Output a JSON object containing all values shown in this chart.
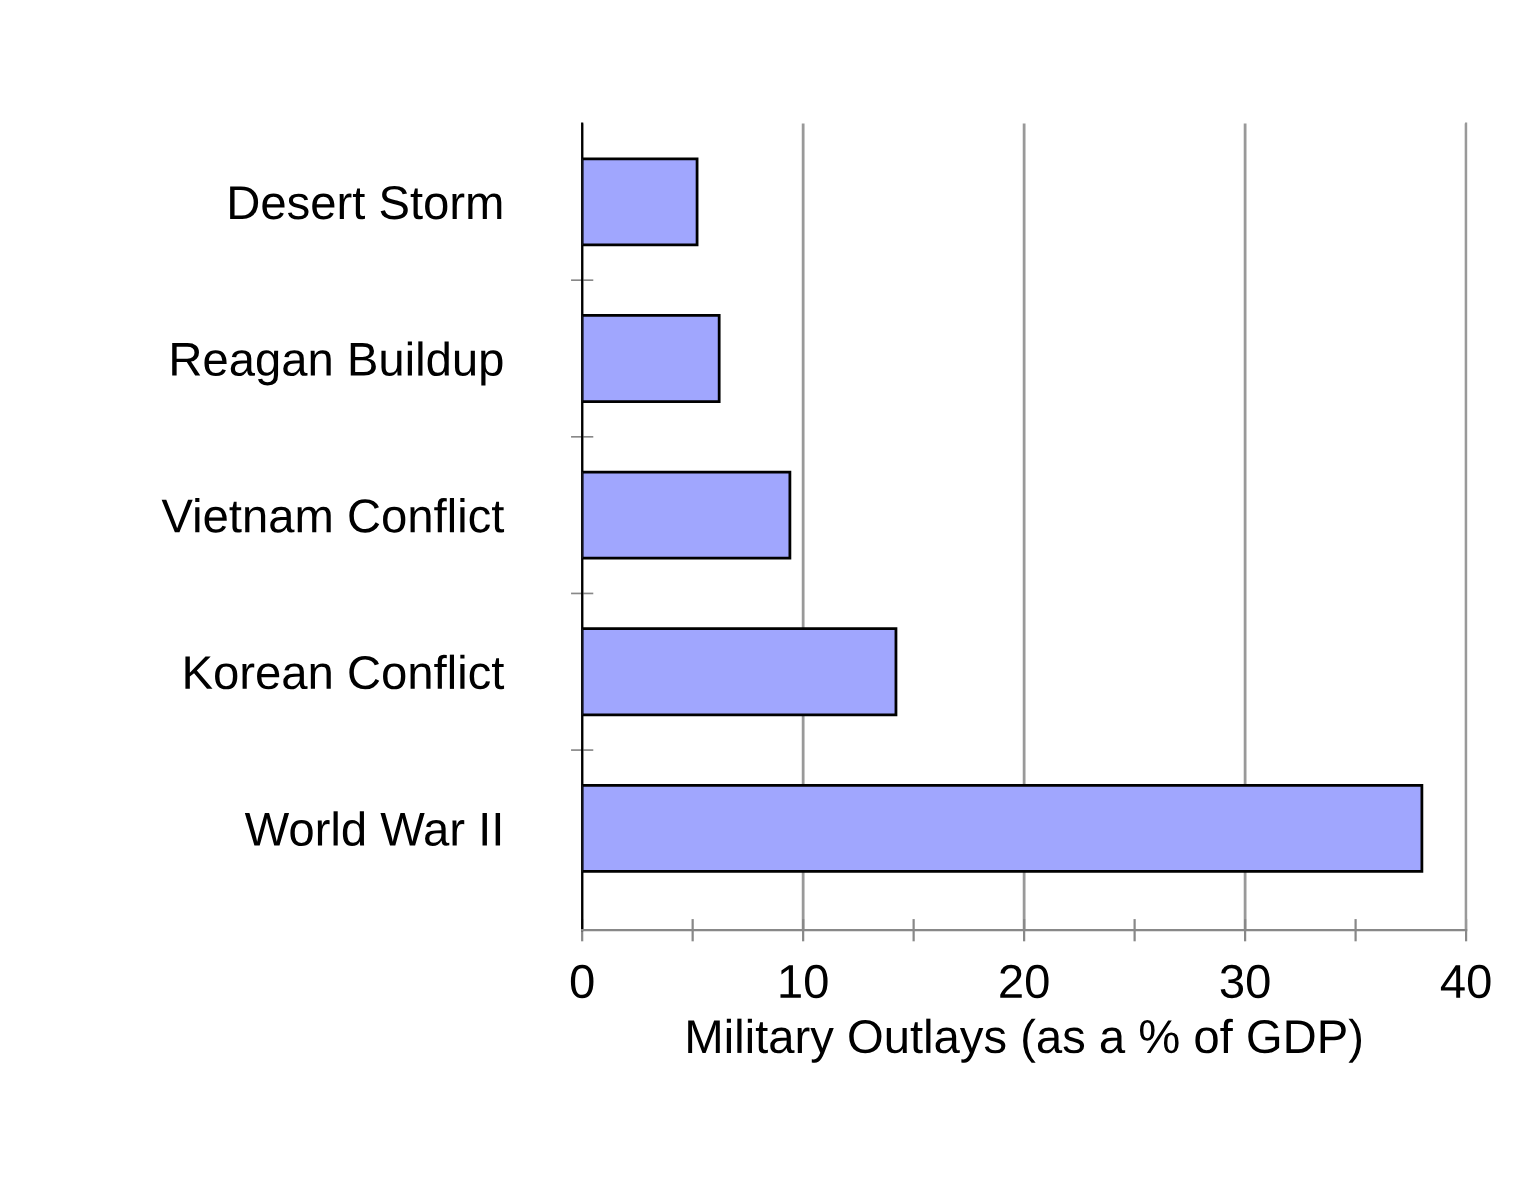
{
  "chart_data": {
    "type": "bar",
    "orientation": "horizontal",
    "categories": [
      "Desert Storm",
      "Reagan Buildup",
      "Vietnam Conflict",
      "Korean Conflict",
      "World War II"
    ],
    "values": [
      5.2,
      6.2,
      9.4,
      14.2,
      38.0
    ],
    "color": "#a0a6fe",
    "xlabel": "Military Outlays (as a % of GDP)",
    "xlim": [
      0,
      40
    ],
    "xticks": [
      0,
      {
        "value": 5,
        "label": null
      },
      10,
      {
        "value": 15,
        "label": null
      },
      20,
      {
        "value": 25,
        "label": null
      },
      30,
      {
        "value": 35,
        "label": null
      },
      40
    ],
    "grid": "x"
  }
}
